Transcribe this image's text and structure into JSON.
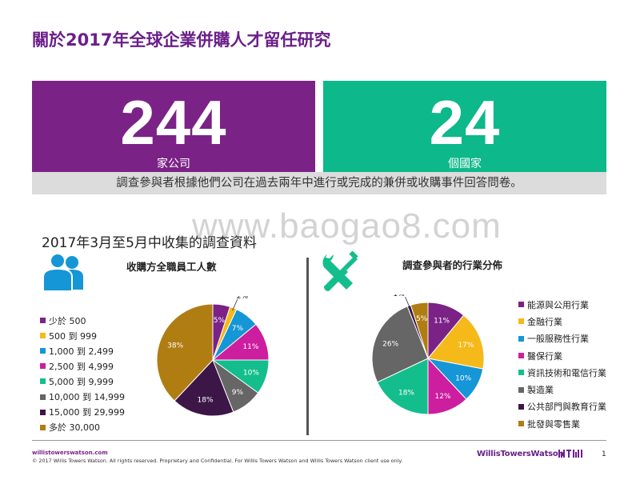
{
  "title": "關於2017年全球企業併購人才留任研究",
  "stats": [
    {
      "value": "244",
      "label": "家公司",
      "color": "#7b2287"
    },
    {
      "value": "24",
      "label": "個國家",
      "color": "#0db88a"
    }
  ],
  "banner": "調查參與者根據他們公司在過去兩年中進行或完成的兼併或收購事件回答問卷。",
  "watermark": "www.baogao8.com",
  "section_title": "2017年3月至5月中收集的調查資料",
  "chart_data": [
    {
      "type": "pie",
      "title": "收購方全職員工人數",
      "categories": [
        "少於 500",
        "500 到 999",
        "1,000 到 2,499",
        "2,500 到 4,999",
        "5,000 到 9,999",
        "10,000 到 14,999",
        "15,000 到 29,999",
        "多於 30,000"
      ],
      "values": [
        5,
        2,
        7,
        11,
        10,
        9,
        18,
        38
      ],
      "labels": [
        "5%",
        "2%",
        "7%",
        "11%",
        "10%",
        "9%",
        "18%",
        "38%"
      ],
      "colors": [
        "#7b2287",
        "#f5b91a",
        "#1596d6",
        "#cc1e9e",
        "#14be8c",
        "#666666",
        "#3d1648",
        "#b07d12"
      ]
    },
    {
      "type": "pie",
      "title": "調查參與者的行業分佈",
      "categories": [
        "能源與公用行業",
        "金融行業",
        "一般服務性行業",
        "醫保行業",
        "資訊技術和電信行業",
        "製造業",
        "公共部門與教育行業",
        "批發與零售業"
      ],
      "values": [
        11,
        17,
        10,
        12,
        18,
        26,
        1,
        5
      ],
      "labels": [
        "11%",
        "17%",
        "10%",
        "12%",
        "18%",
        "26%",
        "1%",
        "5%"
      ],
      "colors": [
        "#7b2287",
        "#f5b91a",
        "#1596d6",
        "#cc1e9e",
        "#14be8c",
        "#666666",
        "#3d1648",
        "#b07d12"
      ]
    }
  ],
  "footer": {
    "site": "willistowerswatson.com",
    "copyright": "© 2017 Willis Towers Watson. All rights reserved. Proprietary and Confidential. For Willis Towers Watson and Willis Towers Watson client use only.",
    "brand": "WillisTowersWatson",
    "page": "1"
  }
}
